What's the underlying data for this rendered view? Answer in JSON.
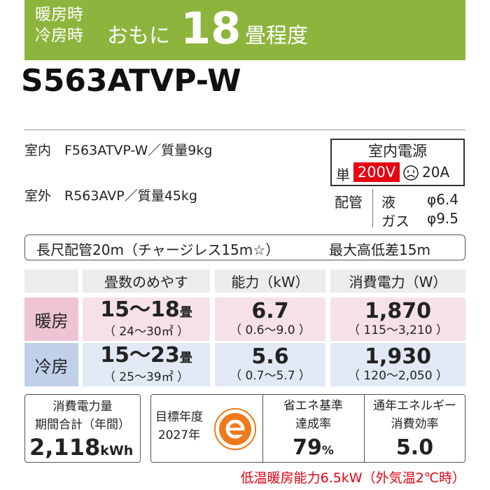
{
  "banner": {
    "label_lines": [
      "暖房時",
      "冷房時"
    ],
    "prefix": "おもに",
    "number": "18",
    "suffix": "畳程度"
  },
  "model": "S563ATVP-W",
  "units": {
    "indoor": "室内　F563ATVP-W／質量9kg",
    "outdoor": "室外　R563AVP／質量45kg"
  },
  "power": {
    "title": "室内電源",
    "phase": "単",
    "voltage": "200V",
    "current": "20A"
  },
  "piping": {
    "label": "配管",
    "liquid_label": "液",
    "liquid": "φ6.4",
    "gas_label": "ガス",
    "gas": "φ9.5"
  },
  "piping_note": {
    "length": "長尺配管20m（チャージレス15m☆）",
    "max_height": "最大高低差15m"
  },
  "table": {
    "header": [
      "畳数のめやす",
      "能力（kW）",
      "消費電力（W）"
    ],
    "rows": [
      {
        "label": "暖房",
        "tatami": "15～18",
        "tatami_unit": "畳",
        "tatami_range": "（ 24～30㎡ ）",
        "capacity": "6.7",
        "capacity_range": "（ 0.6～9.0 ）",
        "power": "1,870",
        "power_range": "（ 115～3,210 ）"
      },
      {
        "label": "冷房",
        "tatami": "15～23",
        "tatami_unit": "畳",
        "tatami_range": "（ 25～39㎡ ）",
        "capacity": "5.6",
        "capacity_range": "（ 0.7～5.7 ）",
        "power": "1,930",
        "power_range": "（ 120～2,050 ）"
      }
    ]
  },
  "efficiency": {
    "annual": {
      "label_lines": [
        "消費電力量",
        "期間合計（年間）"
      ],
      "value": "2,118",
      "unit": "kWh"
    },
    "target_year": [
      "目標年度",
      "2027年"
    ],
    "achievement": {
      "label_lines": [
        "省エネ基準",
        "達成率"
      ],
      "value": "79",
      "unit": "%"
    },
    "apf": {
      "label_lines": [
        "通年エネルギー",
        "消費効率"
      ],
      "value": "5.0"
    }
  },
  "low_temp_note": "低温暖房能力6.5kW（外気温2℃時）"
}
